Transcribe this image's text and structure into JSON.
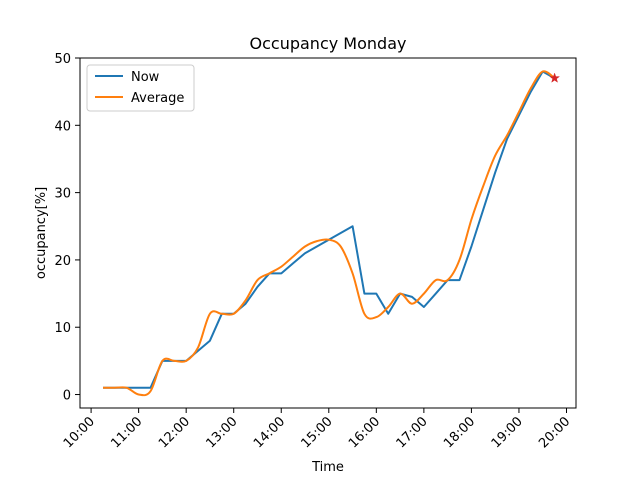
{
  "chart_data": {
    "type": "line",
    "title": "Occupancy Monday",
    "xlabel": "Time",
    "ylabel": "occupancy[%]",
    "xlim": [
      "10:00",
      "20:00"
    ],
    "ylim": [
      -2,
      50
    ],
    "xticks": [
      "10:00",
      "11:00",
      "12:00",
      "13:00",
      "14:00",
      "15:00",
      "16:00",
      "17:00",
      "18:00",
      "19:00",
      "20:00"
    ],
    "yticks": [
      0,
      10,
      20,
      30,
      40,
      50
    ],
    "grid": false,
    "legend": "top-left",
    "series": [
      {
        "name": "Now",
        "color": "#1f77b4",
        "x": [
          "10:15",
          "10:30",
          "10:45",
          "11:00",
          "11:15",
          "11:30",
          "11:45",
          "12:00",
          "12:15",
          "12:30",
          "12:45",
          "13:00",
          "13:15",
          "13:30",
          "13:45",
          "14:00",
          "14:15",
          "14:30",
          "14:45",
          "15:00",
          "15:15",
          "15:30",
          "15:45",
          "16:00",
          "16:15",
          "16:30",
          "16:45",
          "17:00",
          "17:15",
          "17:30",
          "17:45",
          "18:00",
          "18:15",
          "18:30",
          "18:45",
          "19:00",
          "19:15",
          "19:30",
          "19:45"
        ],
        "y": [
          1,
          1,
          1,
          1,
          1,
          5,
          5,
          5,
          6.5,
          8,
          12,
          12,
          13.5,
          16,
          18,
          18,
          19.5,
          21,
          22,
          23,
          24,
          25,
          15,
          15,
          12,
          15,
          14.5,
          13,
          15,
          17,
          17,
          22,
          27.5,
          33,
          38,
          41.5,
          45,
          48,
          47
        ]
      },
      {
        "name": "Average",
        "color": "#ff7f0e",
        "x": [
          "10:15",
          "10:30",
          "10:45",
          "11:00",
          "11:15",
          "11:30",
          "11:45",
          "12:00",
          "12:15",
          "12:30",
          "12:45",
          "13:00",
          "13:15",
          "13:30",
          "13:45",
          "14:00",
          "14:15",
          "14:30",
          "14:45",
          "15:00",
          "15:15",
          "15:30",
          "15:45",
          "16:00",
          "16:15",
          "16:30",
          "16:45",
          "17:00",
          "17:15",
          "17:30",
          "17:45",
          "18:00",
          "18:15",
          "18:30",
          "18:45",
          "19:00",
          "19:15",
          "19:30",
          "19:45"
        ],
        "y": [
          1,
          1,
          1,
          0,
          0.5,
          5,
          5,
          5,
          7,
          12,
          12,
          12,
          14,
          17,
          18,
          19,
          20.5,
          22,
          22.8,
          23,
          22,
          18,
          12,
          11.5,
          13,
          15,
          13.5,
          15,
          17,
          17,
          20,
          26,
          31,
          35.5,
          38.5,
          42,
          45.5,
          48,
          47
        ]
      }
    ],
    "current_marker": {
      "x": "19:45",
      "y": 47,
      "color": "#d62728",
      "symbol": "star"
    }
  }
}
